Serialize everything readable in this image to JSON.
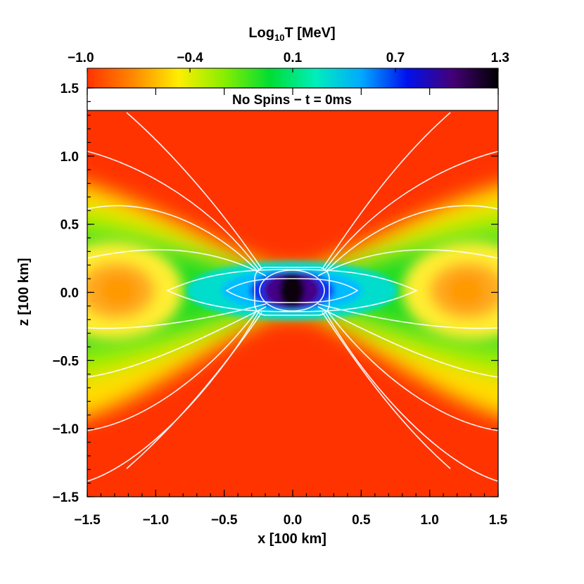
{
  "chart_data": {
    "type": "heatmap",
    "colorbar": {
      "title_prefix": "Log",
      "title_sub": "10",
      "title_suffix": "T [MeV]",
      "ticks": [
        "−1.0",
        "−0.4",
        "0.1",
        "0.7",
        "1.3"
      ],
      "range": [
        -1.0,
        1.3
      ],
      "colors": [
        "#ff3300",
        "#ff8800",
        "#ffee00",
        "#88ee00",
        "#00dd33",
        "#00eebb",
        "#00aaff",
        "#0011ee",
        "#440077",
        "#000000"
      ]
    },
    "panel_label": "No Spins − t = 0ms",
    "xlabel": "x [100 km]",
    "ylabel": "z [100 km]",
    "xlim": [
      -1.5,
      1.5
    ],
    "ylim": [
      -1.5,
      1.5
    ],
    "xticks": [
      -1.5,
      -1.0,
      -0.5,
      0.0,
      0.5,
      1.0,
      1.5
    ],
    "xtick_labels": [
      "−1.5",
      "−1.0",
      "−0.5",
      "0.0",
      "0.5",
      "1.0",
      "1.5"
    ],
    "yticks": [
      1.5,
      1.0,
      0.5,
      0.0,
      -0.5,
      -1.0,
      -1.5
    ],
    "ytick_labels": [
      "1.5",
      "1.0",
      "0.5",
      "0.0",
      "−0.5",
      "−1.0",
      "−1.5"
    ],
    "background_value": -1.0,
    "central_peak_value": 1.3,
    "contour_color": "#ffffff"
  }
}
